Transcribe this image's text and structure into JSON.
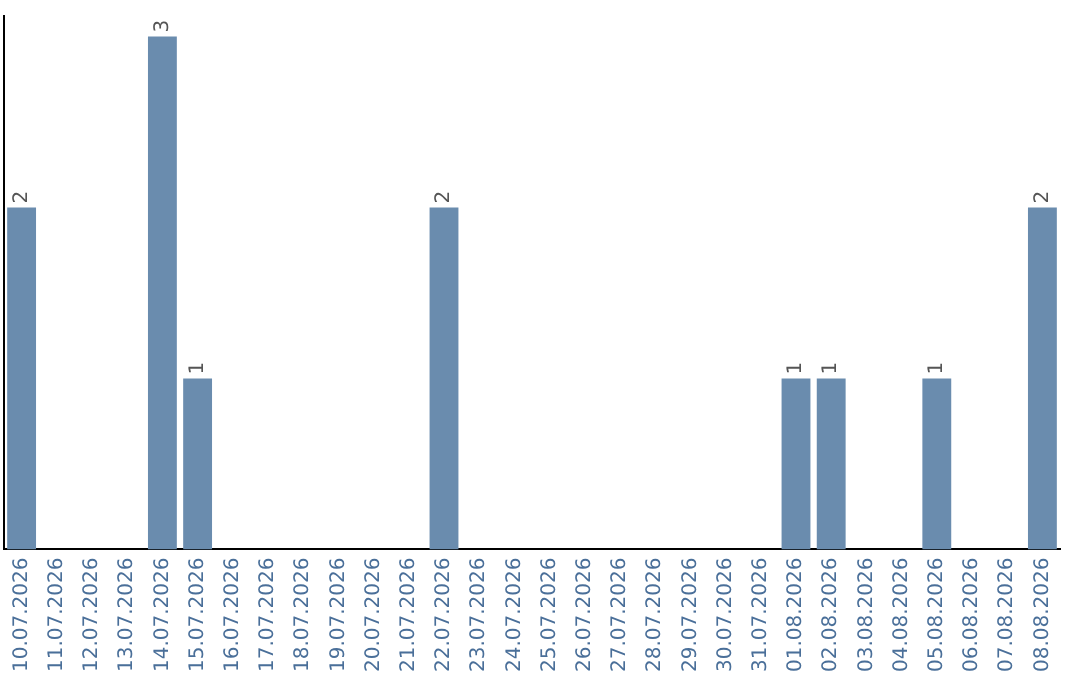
{
  "chart_data": {
    "type": "bar",
    "categories": [
      "10.07.2026",
      "11.07.2026",
      "12.07.2026",
      "13.07.2026",
      "14.07.2026",
      "15.07.2026",
      "16.07.2026",
      "17.07.2026",
      "18.07.2026",
      "19.07.2026",
      "20.07.2026",
      "21.07.2026",
      "22.07.2026",
      "23.07.2026",
      "24.07.2026",
      "25.07.2026",
      "26.07.2026",
      "27.07.2026",
      "28.07.2026",
      "29.07.2026",
      "30.07.2026",
      "31.07.2026",
      "01.08.2026",
      "02.08.2026",
      "03.08.2026",
      "04.08.2026",
      "05.08.2026",
      "06.08.2026",
      "07.08.2026",
      "08.08.2026"
    ],
    "values": [
      2,
      0,
      0,
      0,
      3,
      1,
      0,
      0,
      0,
      0,
      0,
      0,
      2,
      0,
      0,
      0,
      0,
      0,
      0,
      0,
      0,
      0,
      1,
      1,
      0,
      0,
      1,
      0,
      0,
      2
    ],
    "value_labels": [
      "2",
      null,
      null,
      null,
      "3",
      "1",
      null,
      null,
      null,
      null,
      null,
      null,
      "2",
      null,
      null,
      null,
      null,
      null,
      null,
      null,
      null,
      null,
      "1",
      "1",
      null,
      null,
      "1",
      null,
      null,
      "2"
    ],
    "color": "#6a8cae",
    "grid": false,
    "legend": false,
    "tick_labels": "x"
  }
}
